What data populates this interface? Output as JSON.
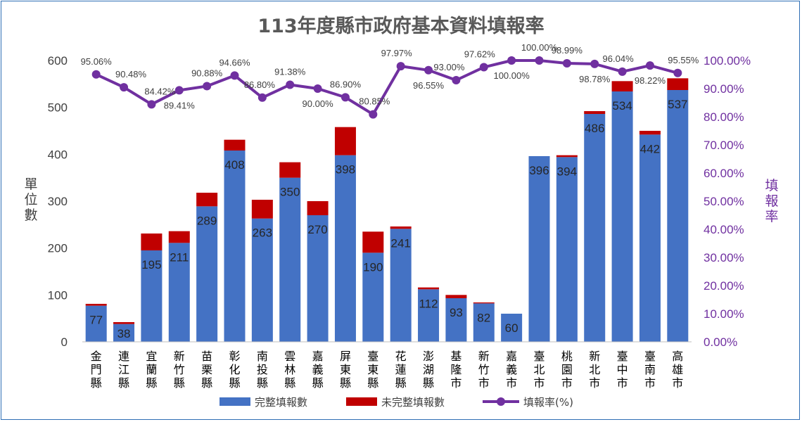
{
  "chart_data": {
    "type": "bar",
    "stacked": true,
    "title": "113年度縣市政府基本資料填報率",
    "ylabel": "單位數",
    "y2label": "填報率",
    "ylim": [
      0,
      600
    ],
    "yticks": [
      "0",
      "100",
      "200",
      "300",
      "400",
      "500",
      "600"
    ],
    "y2lim": [
      0,
      100
    ],
    "y2ticks": [
      "0.00%",
      "10.00%",
      "20.00%",
      "30.00%",
      "40.00%",
      "50.00%",
      "60.00%",
      "70.00%",
      "80.00%",
      "90.00%",
      "100.00%"
    ],
    "categories": [
      "金門縣",
      "連江縣",
      "宜蘭縣",
      "新竹縣",
      "苗栗縣",
      "彰化縣",
      "南投縣",
      "雲林縣",
      "嘉義縣",
      "屏東縣",
      "臺東縣",
      "花蓮縣",
      "澎湖縣",
      "基隆市",
      "新竹市",
      "嘉義市",
      "臺北市",
      "桃園市",
      "新北市",
      "臺中市",
      "臺南市",
      "高雄市"
    ],
    "series": [
      {
        "name": "完整填報數",
        "color": "#4472c4",
        "values": [
          77,
          38,
          195,
          211,
          289,
          408,
          263,
          350,
          270,
          398,
          190,
          241,
          112,
          93,
          82,
          60,
          396,
          394,
          486,
          534,
          442,
          537
        ],
        "labels": [
          "77",
          "38",
          "195",
          "211",
          "289",
          "408",
          "263",
          "350",
          "270",
          "398",
          "190",
          "241",
          "112",
          "93",
          "82",
          "60",
          "396",
          "394",
          "486",
          "534",
          "442",
          "537"
        ]
      },
      {
        "name": "未完整填報數",
        "color": "#c00000",
        "values": [
          4,
          4,
          36,
          25,
          29,
          23,
          40,
          33,
          30,
          60,
          45,
          5,
          4,
          7,
          2,
          0,
          0,
          4,
          6,
          22,
          8,
          25
        ]
      },
      {
        "name": "填報率(%)",
        "type": "line",
        "axis": "right",
        "color": "#7030a0",
        "values": [
          95.06,
          90.48,
          84.42,
          89.41,
          90.88,
          94.66,
          86.8,
          91.38,
          90.0,
          86.9,
          80.85,
          97.97,
          96.55,
          93.0,
          97.62,
          100.0,
          100.0,
          98.99,
          98.78,
          96.04,
          98.22,
          95.55
        ],
        "labels": [
          "95.06%",
          "90.48%",
          "84.42%",
          "89.41%",
          "90.88%",
          "94.66%",
          "86.80%",
          "91.38%",
          "90.00%",
          "86.90%",
          "80.85%",
          "97.97%",
          "96.55%",
          "93.00%",
          "97.62%",
          "100.00%",
          "100.00%",
          "98.99%",
          "98.78%",
          "96.04%",
          "98.22%",
          "95.55%"
        ]
      }
    ],
    "legend_position": "bottom"
  }
}
